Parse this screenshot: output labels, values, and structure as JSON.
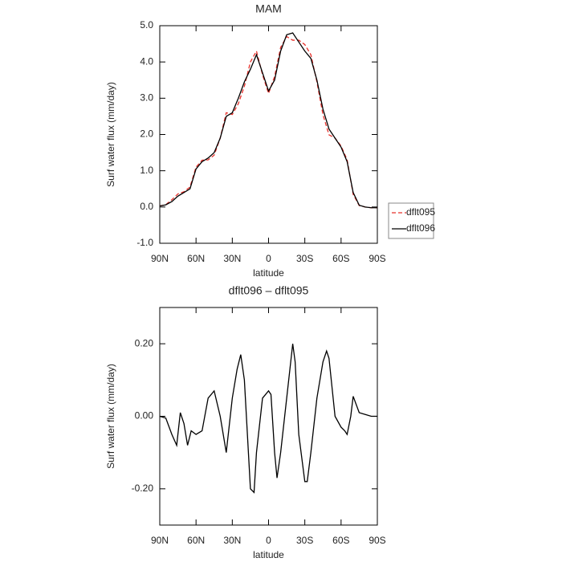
{
  "chart_data": [
    {
      "type": "line",
      "title": "MAM",
      "xlabel": "latitude",
      "ylabel": "Surf water flux (mm/day)",
      "x": [
        90,
        85,
        80,
        75,
        70,
        65,
        60,
        55,
        50,
        45,
        40,
        35,
        30,
        25,
        20,
        15,
        10,
        5,
        0,
        -5,
        -10,
        -15,
        -20,
        -25,
        -30,
        -35,
        -40,
        -45,
        -50,
        -55,
        -60,
        -65,
        -70,
        -75,
        -80,
        -85,
        -90
      ],
      "series": [
        {
          "name": "dflt095",
          "color": "#e8302a",
          "style": "dashed",
          "values": [
            0.03,
            0.065,
            0.2,
            0.36,
            0.42,
            0.55,
            1.1,
            1.29,
            1.3,
            1.43,
            1.9,
            2.6,
            2.55,
            2.85,
            3.33,
            4.0,
            4.3,
            3.65,
            3.13,
            3.6,
            4.4,
            4.7,
            4.6,
            4.6,
            4.48,
            4.2,
            3.45,
            2.55,
            1.99,
            1.9,
            1.68,
            1.3,
            0.35,
            0.04,
            0,
            -0.02,
            -0.02
          ]
        },
        {
          "name": "dflt096",
          "color": "#000000",
          "style": "solid",
          "values": [
            0.03,
            0.06,
            0.15,
            0.3,
            0.4,
            0.5,
            1.05,
            1.25,
            1.35,
            1.5,
            1.9,
            2.5,
            2.6,
            3.0,
            3.45,
            3.8,
            4.2,
            3.7,
            3.2,
            3.5,
            4.3,
            4.75,
            4.8,
            4.55,
            4.3,
            4.1,
            3.5,
            2.7,
            2.15,
            1.9,
            1.65,
            1.25,
            0.4,
            0.05,
            0,
            -0.02,
            -0.02
          ]
        }
      ],
      "xlim": [
        90,
        -90
      ],
      "xticks": [
        {
          "value": 90,
          "label": "90N"
        },
        {
          "value": 60,
          "label": "60N"
        },
        {
          "value": 30,
          "label": "30N"
        },
        0,
        {
          "value": -30,
          "label": "30S"
        },
        {
          "value": -60,
          "label": "60S"
        },
        {
          "value": -90,
          "label": "90S"
        }
      ],
      "ylim": [
        -1,
        5
      ],
      "yticks": [
        {
          "value": -1,
          "label": "-1.0"
        },
        {
          "value": 0,
          "label": "0.0"
        },
        {
          "value": 1,
          "label": "1.0"
        },
        {
          "value": 2,
          "label": "2.0"
        },
        {
          "value": 3,
          "label": "3.0"
        },
        {
          "value": 4,
          "label": "4.0"
        },
        {
          "value": 5,
          "label": "5.0"
        }
      ],
      "legend": "right"
    },
    {
      "type": "line",
      "title": "dflt096 – dflt095",
      "xlabel": "latitude",
      "ylabel": "Surf water flux (mm/day)",
      "x": [
        90,
        85,
        80,
        76,
        73,
        70,
        67,
        64,
        60,
        55,
        50,
        45,
        40,
        35,
        30,
        26,
        23,
        20,
        15,
        12,
        10,
        5,
        0,
        -2,
        -5,
        -7,
        -10,
        -15,
        -20,
        -22,
        -25,
        -30,
        -32,
        -35,
        -40,
        -45,
        -48,
        -50,
        -55,
        -60,
        -63,
        -65,
        -68,
        -70,
        -75,
        -80,
        -85,
        -90
      ],
      "series": [
        {
          "name": "dflt096 – dflt095",
          "color": "#000000",
          "style": "solid",
          "values": [
            0,
            -0.005,
            -0.05,
            -0.08,
            0.01,
            -0.02,
            -0.08,
            -0.04,
            -0.05,
            -0.04,
            0.05,
            0.07,
            0,
            -0.1,
            0.05,
            0.13,
            0.17,
            0.1,
            -0.2,
            -0.21,
            -0.1,
            0.05,
            0.07,
            0.06,
            -0.1,
            -0.17,
            -0.1,
            0.05,
            0.2,
            0.15,
            -0.05,
            -0.18,
            -0.18,
            -0.1,
            0.05,
            0.15,
            0.18,
            0.16,
            0,
            -0.03,
            -0.04,
            -0.05,
            0,
            0.055,
            0.01,
            0.005,
            0,
            0
          ]
        }
      ],
      "xlim": [
        90,
        -90
      ],
      "xticks": [
        {
          "value": 90,
          "label": "90N"
        },
        {
          "value": 60,
          "label": "60N"
        },
        {
          "value": 30,
          "label": "30N"
        },
        0,
        {
          "value": -30,
          "label": "30S"
        },
        {
          "value": -60,
          "label": "60S"
        },
        {
          "value": -90,
          "label": "90S"
        }
      ],
      "ylim": [
        -0.3,
        0.3
      ],
      "yticks": [
        {
          "value": -0.2,
          "label": "-0.20"
        },
        {
          "value": 0,
          "label": "0.00"
        },
        {
          "value": 0.2,
          "label": "0.20"
        }
      ]
    }
  ]
}
